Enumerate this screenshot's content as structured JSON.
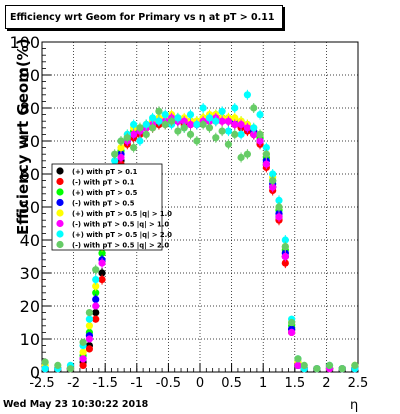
{
  "chart_data": {
    "type": "scatter",
    "title": "Efficiency wrt Geom for Primary vs   η at pT > 0.11",
    "xlabel": "η",
    "ylabel": "Efficiency wrt Geom(%)",
    "xlim": [
      -2.5,
      2.5
    ],
    "ylim": [
      0,
      100
    ],
    "x_ticks": [
      "-2.5",
      "-2",
      "-1.5",
      "-1",
      "-0.5",
      "0",
      "0.5",
      "1",
      "1.5",
      "2",
      "2.5"
    ],
    "y_ticks": [
      "0",
      "10",
      "20",
      "30",
      "40",
      "50",
      "60",
      "70",
      "80",
      "90",
      "100"
    ],
    "grid": true,
    "legend_position": "left-middle",
    "series": [
      {
        "name": "(+) with pT > 0.1",
        "color": "#000000",
        "marker": "circle",
        "x": [
          -2.45,
          -2.25,
          -2.05,
          -1.85,
          -1.75,
          -1.65,
          -1.55,
          -1.45,
          -1.35,
          -1.25,
          -1.15,
          -1.05,
          -0.95,
          -0.85,
          -0.75,
          -0.65,
          -0.55,
          -0.45,
          -0.35,
          -0.25,
          -0.15,
          -0.05,
          0.05,
          0.15,
          0.25,
          0.35,
          0.45,
          0.55,
          0.65,
          0.75,
          0.85,
          0.95,
          1.05,
          1.15,
          1.25,
          1.35,
          1.45,
          1.55,
          1.65,
          1.85,
          2.05,
          2.25,
          2.45
        ],
        "y": [
          1,
          1,
          1,
          3,
          8,
          18,
          30,
          42,
          55,
          64,
          70,
          72,
          73,
          74,
          75,
          75,
          76,
          77,
          76,
          76,
          75,
          75,
          76,
          76,
          77,
          77,
          76,
          76,
          75,
          74,
          72,
          70,
          63,
          56,
          47,
          35,
          13,
          2,
          1,
          1,
          1,
          1,
          1
        ]
      },
      {
        "name": "(-) with pT > 0.1",
        "color": "#ff0000",
        "marker": "circle",
        "x": [
          -2.45,
          -2.25,
          -2.05,
          -1.85,
          -1.75,
          -1.65,
          -1.55,
          -1.45,
          -1.35,
          -1.25,
          -1.15,
          -1.05,
          -0.95,
          -0.85,
          -0.75,
          -0.65,
          -0.55,
          -0.45,
          -0.35,
          -0.25,
          -0.15,
          -0.05,
          0.05,
          0.15,
          0.25,
          0.35,
          0.45,
          0.55,
          0.65,
          0.75,
          0.85,
          0.95,
          1.05,
          1.15,
          1.25,
          1.35,
          1.45,
          1.55,
          1.65,
          1.85,
          2.05,
          2.25,
          2.45
        ],
        "y": [
          1,
          1,
          1,
          2,
          7,
          16,
          28,
          40,
          53,
          63,
          69,
          71,
          72,
          74,
          74,
          75,
          75,
          76,
          76,
          75,
          75,
          75,
          76,
          76,
          76,
          76,
          76,
          75,
          74,
          73,
          72,
          69,
          62,
          55,
          46,
          33,
          12,
          2,
          1,
          1,
          1,
          1,
          1
        ]
      },
      {
        "name": "(+) with pT > 0.5",
        "color": "#00ff00",
        "marker": "circle",
        "x": [
          -2.45,
          -2.25,
          -2.05,
          -1.85,
          -1.75,
          -1.65,
          -1.55,
          -1.45,
          -1.35,
          -1.25,
          -1.15,
          -1.05,
          -0.95,
          -0.85,
          -0.75,
          -0.65,
          -0.55,
          -0.45,
          -0.35,
          -0.25,
          -0.15,
          -0.05,
          0.05,
          0.15,
          0.25,
          0.35,
          0.45,
          0.55,
          0.65,
          0.75,
          0.85,
          0.95,
          1.05,
          1.15,
          1.25,
          1.35,
          1.45,
          1.55,
          1.65,
          1.85,
          2.05,
          2.25,
          2.45
        ],
        "y": [
          1,
          1,
          1,
          5,
          12,
          24,
          36,
          48,
          60,
          67,
          71,
          73,
          74,
          75,
          76,
          76,
          77,
          77,
          77,
          76,
          76,
          76,
          77,
          77,
          78,
          77,
          77,
          76,
          76,
          75,
          73,
          71,
          65,
          58,
          49,
          37,
          14,
          3,
          1,
          1,
          1,
          1,
          1
        ]
      },
      {
        "name": "(-) with pT > 0.5",
        "color": "#0000ff",
        "marker": "circle",
        "x": [
          -2.45,
          -2.25,
          -2.05,
          -1.85,
          -1.75,
          -1.65,
          -1.55,
          -1.45,
          -1.35,
          -1.25,
          -1.15,
          -1.05,
          -0.95,
          -0.85,
          -0.75,
          -0.65,
          -0.55,
          -0.45,
          -0.35,
          -0.25,
          -0.15,
          -0.05,
          0.05,
          0.15,
          0.25,
          0.35,
          0.45,
          0.55,
          0.65,
          0.75,
          0.85,
          0.95,
          1.05,
          1.15,
          1.25,
          1.35,
          1.45,
          1.55,
          1.65,
          1.85,
          2.05,
          2.25,
          2.45
        ],
        "y": [
          1,
          1,
          1,
          4,
          11,
          22,
          34,
          46,
          58,
          66,
          70,
          72,
          73,
          75,
          75,
          76,
          76,
          77,
          76,
          76,
          76,
          75,
          76,
          77,
          77,
          77,
          76,
          76,
          75,
          74,
          73,
          70,
          64,
          57,
          48,
          36,
          13,
          2,
          1,
          1,
          1,
          1,
          1
        ]
      },
      {
        "name": "(+) with pT > 0.5 |q| > 1.0",
        "color": "#ffff00",
        "marker": "circle",
        "x": [
          -2.45,
          -2.25,
          -2.05,
          -1.85,
          -1.75,
          -1.65,
          -1.55,
          -1.45,
          -1.35,
          -1.25,
          -1.15,
          -1.05,
          -0.95,
          -0.85,
          -0.75,
          -0.65,
          -0.55,
          -0.45,
          -0.35,
          -0.25,
          -0.15,
          -0.05,
          0.05,
          0.15,
          0.25,
          0.35,
          0.45,
          0.55,
          0.65,
          0.75,
          0.85,
          0.95,
          1.05,
          1.15,
          1.25,
          1.35,
          1.45,
          1.55,
          1.65,
          1.85,
          2.05,
          2.25,
          2.45
        ],
        "y": [
          2,
          1,
          1,
          6,
          14,
          26,
          38,
          50,
          62,
          68,
          72,
          74,
          74,
          75,
          76,
          77,
          77,
          78,
          77,
          77,
          76,
          76,
          77,
          78,
          78,
          77,
          77,
          77,
          76,
          75,
          74,
          72,
          66,
          59,
          50,
          38,
          15,
          3,
          1,
          1,
          1,
          1,
          2
        ]
      },
      {
        "name": "(-) with pT > 0.5 |q| > 1.0",
        "color": "#ff00ff",
        "marker": "circle",
        "x": [
          -2.45,
          -2.25,
          -2.05,
          -1.85,
          -1.75,
          -1.65,
          -1.55,
          -1.45,
          -1.35,
          -1.25,
          -1.15,
          -1.05,
          -0.95,
          -0.85,
          -0.75,
          -0.65,
          -0.55,
          -0.45,
          -0.35,
          -0.25,
          -0.15,
          -0.05,
          0.05,
          0.15,
          0.25,
          0.35,
          0.45,
          0.55,
          0.65,
          0.75,
          0.85,
          0.95,
          1.05,
          1.15,
          1.25,
          1.35,
          1.45,
          1.55,
          1.65,
          1.85,
          2.05,
          2.25,
          2.45
        ],
        "y": [
          1,
          1,
          1,
          4,
          10,
          20,
          33,
          45,
          57,
          65,
          70,
          72,
          73,
          74,
          75,
          76,
          76,
          77,
          76,
          76,
          75,
          75,
          76,
          76,
          77,
          76,
          76,
          75,
          75,
          74,
          72,
          70,
          63,
          56,
          47,
          35,
          12,
          2,
          1,
          1,
          1,
          1,
          1
        ]
      },
      {
        "name": "(+) with pT > 0.5 |q| > 2.0",
        "color": "#00ffff",
        "marker": "circle",
        "x": [
          -2.45,
          -2.25,
          -2.05,
          -1.85,
          -1.75,
          -1.65,
          -1.55,
          -1.45,
          -1.35,
          -1.25,
          -1.15,
          -1.05,
          -0.95,
          -0.85,
          -0.75,
          -0.65,
          -0.55,
          -0.45,
          -0.35,
          -0.25,
          -0.15,
          -0.05,
          0.05,
          0.15,
          0.25,
          0.35,
          0.45,
          0.55,
          0.65,
          0.75,
          0.85,
          0.95,
          1.05,
          1.15,
          1.25,
          1.35,
          1.45,
          1.55,
          1.65,
          1.85,
          2.05,
          2.25,
          2.45
        ],
        "y": [
          1,
          1,
          2,
          8,
          16,
          28,
          40,
          52,
          64,
          70,
          72,
          75,
          70,
          75,
          77,
          76,
          78,
          75,
          77,
          74,
          78,
          75,
          80,
          77,
          76,
          79,
          73,
          80,
          72,
          84,
          74,
          78,
          68,
          60,
          52,
          40,
          16,
          4,
          1,
          1,
          2,
          1,
          1
        ]
      },
      {
        "name": "(-) with pT > 0.5 |q| > 2.0",
        "color": "#66cc66",
        "marker": "circle",
        "x": [
          -2.45,
          -2.25,
          -2.05,
          -1.85,
          -1.75,
          -1.65,
          -1.55,
          -1.45,
          -1.35,
          -1.25,
          -1.15,
          -1.05,
          -0.95,
          -0.85,
          -0.75,
          -0.65,
          -0.55,
          -0.45,
          -0.35,
          -0.25,
          -0.15,
          -0.05,
          0.05,
          0.15,
          0.25,
          0.35,
          0.45,
          0.55,
          0.65,
          0.75,
          0.85,
          0.95,
          1.05,
          1.15,
          1.25,
          1.35,
          1.45,
          1.55,
          1.65,
          1.85,
          2.05,
          2.25,
          2.45
        ],
        "y": [
          3,
          2,
          1,
          9,
          18,
          31,
          43,
          55,
          66,
          70,
          71,
          68,
          74,
          72,
          74,
          79,
          75,
          76,
          73,
          74,
          72,
          70,
          75,
          74,
          71,
          73,
          69,
          72,
          65,
          66,
          80,
          72,
          66,
          58,
          50,
          38,
          15,
          4,
          2,
          1,
          2,
          1,
          2
        ]
      }
    ]
  },
  "footer": {
    "timestamp": "Wed May 23 10:30:22 2018"
  }
}
